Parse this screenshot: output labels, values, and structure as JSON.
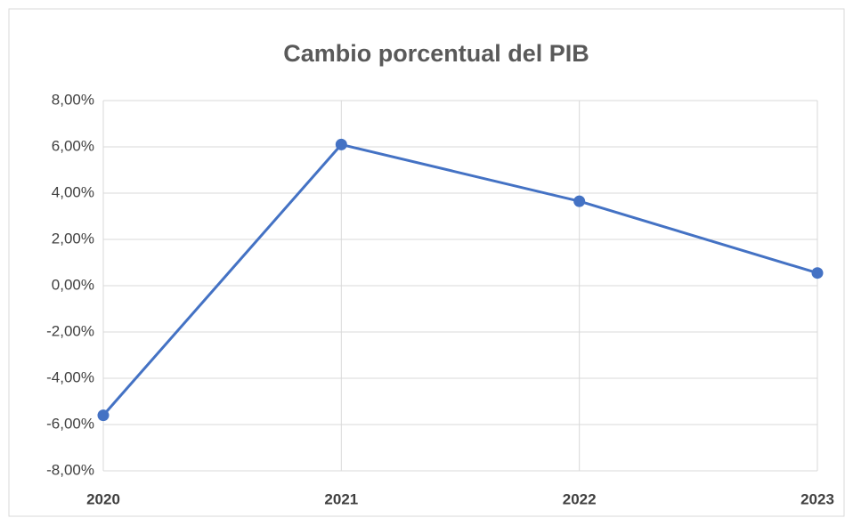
{
  "chart_data": {
    "type": "line",
    "title": "Cambio porcentual del PIB",
    "categories": [
      "2020",
      "2021",
      "2022",
      "2023"
    ],
    "values": [
      -5.6,
      6.1,
      3.65,
      0.55
    ],
    "color": "#4472c4",
    "ylim": [
      -8,
      8
    ],
    "yticks": [
      {
        "value": -8,
        "label": "-8,00%"
      },
      {
        "value": -6,
        "label": "-6,00%"
      },
      {
        "value": -4,
        "label": "-4,00%"
      },
      {
        "value": -2,
        "label": "-2,00%"
      },
      {
        "value": 0,
        "label": "0,00%"
      },
      {
        "value": 2,
        "label": "2,00%"
      },
      {
        "value": 4,
        "label": "4,00%"
      },
      {
        "value": 6,
        "label": "6,00%"
      },
      {
        "value": 8,
        "label": "8,00%"
      }
    ],
    "grid": true
  }
}
